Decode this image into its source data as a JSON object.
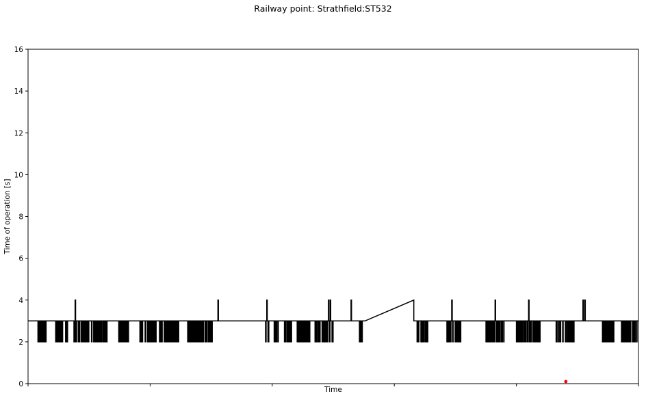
{
  "chart_data": {
    "type": "line",
    "title": "Railway point: Strathfield:ST532",
    "xlabel": "Time",
    "ylabel": "Time of operation [s]",
    "ylim": [
      0,
      16
    ],
    "yticks": [
      0,
      2,
      4,
      6,
      8,
      10,
      12,
      14,
      16
    ],
    "xlim": [
      0,
      1
    ],
    "x_ticks": [
      0,
      0.2,
      0.4,
      0.6,
      0.8,
      1.0
    ],
    "x_tick_labels_shown": false,
    "grid": false,
    "legend": false,
    "series": [
      {
        "color": "#000000",
        "style": "line",
        "baseline": 3,
        "drops_to": 2,
        "spikes_to": 4,
        "spike_x": [
          0.077,
          0.111,
          0.311,
          0.391,
          0.492,
          0.495,
          0.529,
          0.694,
          0.765,
          0.82,
          0.909,
          0.912,
          0.979
        ],
        "dip_bursts": [
          [
            0.016,
            0.03
          ],
          [
            0.045,
            0.065
          ],
          [
            0.075,
            0.1
          ],
          [
            0.103,
            0.132
          ],
          [
            0.147,
            0.165
          ],
          [
            0.183,
            0.21
          ],
          [
            0.215,
            0.248
          ],
          [
            0.26,
            0.302
          ],
          [
            0.389,
            0.395
          ],
          [
            0.403,
            0.411
          ],
          [
            0.419,
            0.432
          ],
          [
            0.44,
            0.462
          ],
          [
            0.47,
            0.5
          ],
          [
            0.542,
            0.548
          ],
          [
            0.637,
            0.656
          ],
          [
            0.686,
            0.71
          ],
          [
            0.75,
            0.78
          ],
          [
            0.8,
            0.84
          ],
          [
            0.865,
            0.895
          ],
          [
            0.94,
            0.96
          ],
          [
            0.972,
            0.998
          ]
        ],
        "ramp": {
          "x": [
            0.552,
            0.632
          ],
          "y": [
            3,
            4
          ]
        }
      },
      {
        "color": "#ff0000",
        "style": "scatter",
        "points": [
          {
            "x": 0.881,
            "y": 0.1
          }
        ]
      }
    ]
  }
}
